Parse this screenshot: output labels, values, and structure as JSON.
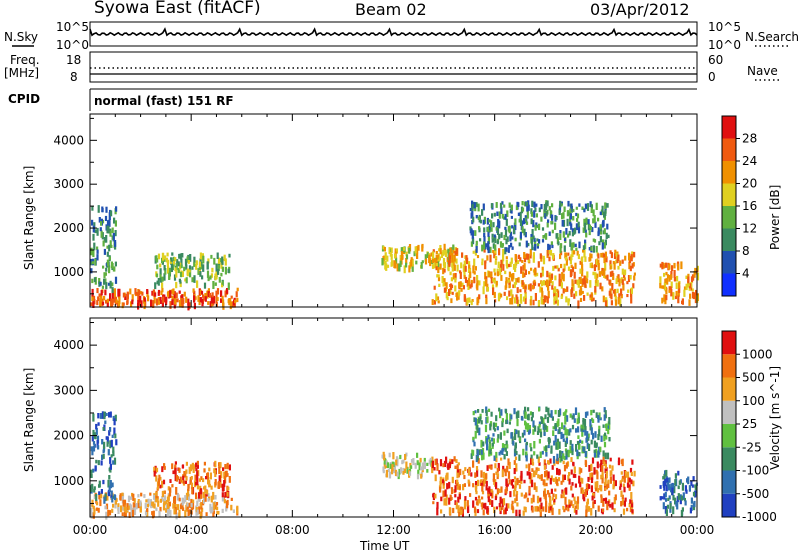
{
  "header": {
    "station": "Syowa East (fitACF)",
    "beam": "Beam 02",
    "date": "03/Apr/2012"
  },
  "noise_panel": {
    "left_label": "N.Sky",
    "right_label": "N.Search",
    "left_top_tick": "10^5",
    "left_bottom_tick": "10^0",
    "right_top_tick": "10^5",
    "right_bottom_tick": "10^0"
  },
  "freq_panel": {
    "left_label_line1": "Freq.",
    "left_label_line2": "[MHz]",
    "left_ticks": [
      "18",
      "8"
    ],
    "right_label": "Nave",
    "right_ticks": [
      "60",
      "0"
    ]
  },
  "cpid_panel": {
    "label": "CPID",
    "text": "normal (fast) 151 RF"
  },
  "x_axis": {
    "label": "Time UT",
    "ticks": [
      "00:00",
      "04:00",
      "08:00",
      "12:00",
      "16:00",
      "20:00",
      "00:00"
    ]
  },
  "chart_data": [
    {
      "type": "heatmap",
      "name": "power",
      "ylabel": "Slant Range [km]",
      "yticks": [
        1000,
        2000,
        3000,
        4000
      ],
      "ylim": [
        200,
        4600
      ],
      "xlim_hours": [
        0,
        24
      ],
      "colorbar": {
        "label": "Power [dB]",
        "ticks": [
          "4",
          "8",
          "12",
          "16",
          "20",
          "24",
          "28"
        ],
        "colors": [
          "#1030ff",
          "#2050b0",
          "#3a8a60",
          "#60b040",
          "#e0d020",
          "#f09000",
          "#f05a10",
          "#e01010"
        ]
      },
      "echo_regions": [
        {
          "t0": 0.0,
          "t1": 5.8,
          "r0": 250,
          "r1": 600,
          "level": 6
        },
        {
          "t0": 0.0,
          "t1": 1.0,
          "r0": 600,
          "r1": 2500,
          "level": 2
        },
        {
          "t0": 2.5,
          "t1": 5.5,
          "r0": 700,
          "r1": 1400,
          "level": 3
        },
        {
          "t0": 11.5,
          "t1": 14.5,
          "r0": 1100,
          "r1": 1600,
          "level": 4
        },
        {
          "t0": 13.5,
          "t1": 21.5,
          "r0": 300,
          "r1": 1500,
          "level": 5
        },
        {
          "t0": 15.0,
          "t1": 20.5,
          "r0": 1500,
          "r1": 2600,
          "level": 2
        },
        {
          "t0": 22.5,
          "t1": 24.0,
          "r0": 300,
          "r1": 1200,
          "level": 5
        }
      ]
    },
    {
      "type": "heatmap",
      "name": "velocity",
      "ylabel": "Slant Range [km]",
      "yticks": [
        1000,
        2000,
        3000,
        4000
      ],
      "ylim": [
        200,
        4600
      ],
      "xlim_hours": [
        0,
        24
      ],
      "colorbar": {
        "label": "Velocity [m s^-1]",
        "ticks": [
          "1000",
          "500",
          "100",
          "25",
          "-25",
          "-100",
          "-500",
          "-1000"
        ],
        "colors": [
          "#2040c0",
          "#3070b0",
          "#3a8a60",
          "#60c040",
          "#c0c0c0",
          "#f0a020",
          "#f07010",
          "#e01010"
        ]
      },
      "echo_regions": [
        {
          "t0": 0.0,
          "t1": 5.8,
          "r0": 250,
          "r1": 700,
          "level": 5
        },
        {
          "t0": 0.0,
          "t1": 1.0,
          "r0": 600,
          "r1": 2500,
          "level": 1
        },
        {
          "t0": 2.5,
          "t1": 5.5,
          "r0": 700,
          "r1": 1400,
          "level": 6
        },
        {
          "t0": 11.5,
          "t1": 13.5,
          "r0": 1100,
          "r1": 1600,
          "level": 4
        },
        {
          "t0": 13.5,
          "t1": 21.5,
          "r0": 300,
          "r1": 1500,
          "level": 6
        },
        {
          "t0": 15.0,
          "t1": 20.5,
          "r0": 1500,
          "r1": 2600,
          "level": 2
        },
        {
          "t0": 22.5,
          "t1": 24.0,
          "r0": 300,
          "r1": 1200,
          "level": 1
        }
      ]
    }
  ]
}
